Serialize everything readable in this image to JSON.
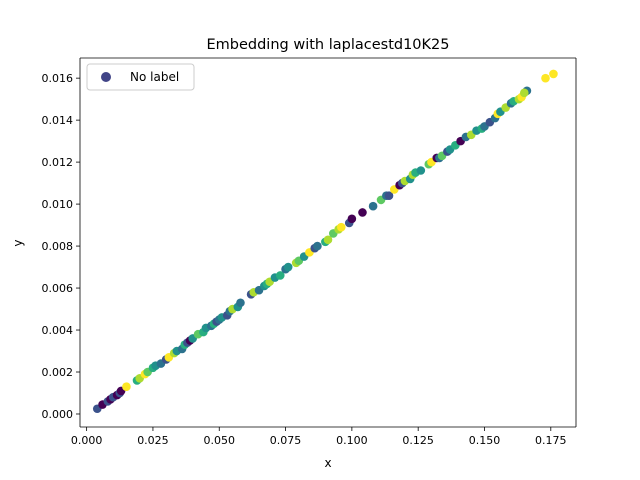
{
  "chart_data": {
    "type": "scatter",
    "title": "Embedding with laplacestd10K25",
    "xlabel": "x",
    "ylabel": "y",
    "xlim": [
      -0.0025,
      0.1845
    ],
    "ylim": [
      -0.00062,
      0.01696
    ],
    "x_ticks": [
      0.0,
      0.025,
      0.05,
      0.075,
      0.1,
      0.125,
      0.15,
      0.175
    ],
    "x_tick_labels": [
      "0.000",
      "0.025",
      "0.050",
      "0.075",
      "0.100",
      "0.125",
      "0.150",
      "0.175"
    ],
    "y_ticks": [
      0.0,
      0.002,
      0.004,
      0.006,
      0.008,
      0.01,
      0.012,
      0.014,
      0.016
    ],
    "y_tick_labels": [
      "0.000",
      "0.002",
      "0.004",
      "0.006",
      "0.008",
      "0.010",
      "0.012",
      "0.014",
      "0.016"
    ],
    "grid": false,
    "legend": {
      "position": "top-left",
      "entries": [
        {
          "label": "No label",
          "color": "#414487"
        }
      ]
    },
    "colormap": "viridis",
    "palette": [
      "#440154",
      "#3b528b",
      "#2c728e",
      "#21918c",
      "#28ae80",
      "#5ec962",
      "#addc30",
      "#fde725"
    ],
    "points": [
      [
        0.004,
        0.00025,
        1
      ],
      [
        0.006,
        0.00045,
        0
      ],
      [
        0.008,
        0.0006,
        1
      ],
      [
        0.009,
        0.0007,
        0
      ],
      [
        0.01,
        0.0008,
        1
      ],
      [
        0.0115,
        0.0009,
        0
      ],
      [
        0.0125,
        0.001,
        1
      ],
      [
        0.013,
        0.0011,
        0
      ],
      [
        0.015,
        0.0013,
        7
      ],
      [
        0.019,
        0.0016,
        4
      ],
      [
        0.02,
        0.0017,
        6
      ],
      [
        0.022,
        0.0019,
        7
      ],
      [
        0.023,
        0.002,
        5
      ],
      [
        0.025,
        0.0022,
        4
      ],
      [
        0.026,
        0.0023,
        3
      ],
      [
        0.028,
        0.0024,
        2
      ],
      [
        0.03,
        0.0026,
        1
      ],
      [
        0.031,
        0.0027,
        7
      ],
      [
        0.033,
        0.0029,
        6
      ],
      [
        0.034,
        0.003,
        3
      ],
      [
        0.036,
        0.0031,
        2
      ],
      [
        0.037,
        0.0033,
        4
      ],
      [
        0.038,
        0.0034,
        1
      ],
      [
        0.039,
        0.0035,
        0
      ],
      [
        0.04,
        0.0036,
        3
      ],
      [
        0.042,
        0.0038,
        5
      ],
      [
        0.044,
        0.0039,
        4
      ],
      [
        0.045,
        0.0041,
        3
      ],
      [
        0.047,
        0.0042,
        2
      ],
      [
        0.048,
        0.0043,
        4
      ],
      [
        0.049,
        0.0044,
        1
      ],
      [
        0.05,
        0.0045,
        2
      ],
      [
        0.051,
        0.0046,
        3
      ],
      [
        0.053,
        0.0047,
        1
      ],
      [
        0.054,
        0.0049,
        2
      ],
      [
        0.055,
        0.005,
        6
      ],
      [
        0.057,
        0.0051,
        3
      ],
      [
        0.058,
        0.0053,
        2
      ],
      [
        0.062,
        0.0057,
        1
      ],
      [
        0.063,
        0.0058,
        6
      ],
      [
        0.065,
        0.0059,
        2
      ],
      [
        0.067,
        0.0061,
        3
      ],
      [
        0.068,
        0.0062,
        4
      ],
      [
        0.069,
        0.0063,
        6
      ],
      [
        0.071,
        0.0065,
        3
      ],
      [
        0.073,
        0.0066,
        4
      ],
      [
        0.075,
        0.0069,
        2
      ],
      [
        0.076,
        0.007,
        3
      ],
      [
        0.079,
        0.0072,
        6
      ],
      [
        0.08,
        0.0073,
        5
      ],
      [
        0.082,
        0.0075,
        3
      ],
      [
        0.084,
        0.0077,
        7
      ],
      [
        0.086,
        0.0079,
        1
      ],
      [
        0.087,
        0.008,
        2
      ],
      [
        0.09,
        0.0082,
        4
      ],
      [
        0.091,
        0.0083,
        6
      ],
      [
        0.093,
        0.0086,
        5
      ],
      [
        0.095,
        0.0088,
        6
      ],
      [
        0.096,
        0.0089,
        7
      ],
      [
        0.099,
        0.0091,
        1
      ],
      [
        0.1,
        0.0093,
        0
      ],
      [
        0.104,
        0.0096,
        0
      ],
      [
        0.108,
        0.0099,
        2
      ],
      [
        0.111,
        0.0102,
        5
      ],
      [
        0.113,
        0.0104,
        2
      ],
      [
        0.114,
        0.0104,
        1
      ],
      [
        0.116,
        0.0107,
        7
      ],
      [
        0.118,
        0.0109,
        0
      ],
      [
        0.119,
        0.011,
        1
      ],
      [
        0.12,
        0.0111,
        6
      ],
      [
        0.122,
        0.0112,
        3
      ],
      [
        0.123,
        0.0114,
        6
      ],
      [
        0.124,
        0.0115,
        4
      ],
      [
        0.126,
        0.0116,
        3
      ],
      [
        0.129,
        0.0119,
        5
      ],
      [
        0.13,
        0.012,
        7
      ],
      [
        0.132,
        0.0122,
        0
      ],
      [
        0.133,
        0.0122,
        2
      ],
      [
        0.134,
        0.0123,
        5
      ],
      [
        0.136,
        0.0125,
        1
      ],
      [
        0.137,
        0.0126,
        3
      ],
      [
        0.139,
        0.0128,
        4
      ],
      [
        0.141,
        0.013,
        0
      ],
      [
        0.143,
        0.0132,
        2
      ],
      [
        0.145,
        0.0133,
        6
      ],
      [
        0.147,
        0.0135,
        3
      ],
      [
        0.149,
        0.0136,
        4
      ],
      [
        0.15,
        0.0137,
        2
      ],
      [
        0.152,
        0.0139,
        1
      ],
      [
        0.154,
        0.0141,
        2
      ],
      [
        0.155,
        0.0143,
        7
      ],
      [
        0.156,
        0.0144,
        3
      ],
      [
        0.158,
        0.0146,
        6
      ],
      [
        0.16,
        0.0148,
        2
      ],
      [
        0.161,
        0.0149,
        4
      ],
      [
        0.163,
        0.015,
        6
      ],
      [
        0.164,
        0.0151,
        7
      ],
      [
        0.166,
        0.0154,
        2
      ],
      [
        0.165,
        0.0153,
        6
      ],
      [
        0.173,
        0.016,
        7
      ],
      [
        0.176,
        0.0162,
        7
      ]
    ]
  }
}
